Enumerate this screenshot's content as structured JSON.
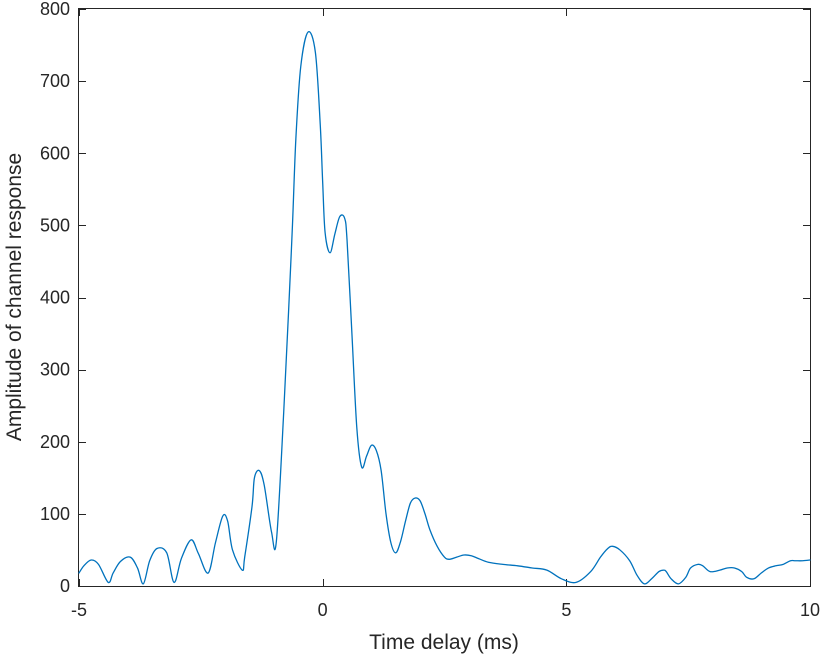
{
  "chart_data": {
    "type": "line",
    "title": "",
    "xlabel": "Time delay (ms)",
    "ylabel": "Amplitude of channel response",
    "xlim": [
      -5,
      10
    ],
    "ylim": [
      0,
      800
    ],
    "xticks": [
      -5,
      0,
      5,
      10
    ],
    "yticks": [
      0,
      100,
      200,
      300,
      400,
      500,
      600,
      700,
      800
    ],
    "xtick_labels": [
      "-5",
      "0",
      "5",
      "10"
    ],
    "ytick_labels": [
      "0",
      "100",
      "200",
      "300",
      "400",
      "500",
      "600",
      "700",
      "800"
    ],
    "grid": false,
    "box": true,
    "series": [
      {
        "color": "#0072BD",
        "x": [
          -5.0,
          -4.9,
          -4.75,
          -4.6,
          -4.4,
          -4.3,
          -4.15,
          -3.95,
          -3.8,
          -3.68,
          -3.55,
          -3.4,
          -3.2,
          -3.05,
          -2.9,
          -2.7,
          -2.55,
          -2.35,
          -2.2,
          -2.05,
          -1.95,
          -1.85,
          -1.65,
          -1.6,
          -1.45,
          -1.4,
          -1.3,
          -1.2,
          -1.05,
          -0.95,
          -0.8,
          -0.7,
          -0.62,
          -0.55,
          -0.45,
          -0.3,
          -0.15,
          -0.05,
          0.0,
          0.05,
          0.15,
          0.25,
          0.35,
          0.45,
          0.5,
          0.6,
          0.7,
          0.8,
          0.9,
          1.0,
          1.1,
          1.2,
          1.3,
          1.4,
          1.5,
          1.6,
          1.7,
          1.8,
          1.9,
          2.0,
          2.1,
          2.2,
          2.35,
          2.5,
          2.6,
          2.75,
          2.9,
          3.05,
          3.2,
          3.4,
          3.7,
          4.0,
          4.3,
          4.6,
          4.9,
          5.2,
          5.5,
          5.7,
          5.85,
          5.95,
          6.1,
          6.3,
          6.45,
          6.6,
          6.75,
          6.9,
          7.0,
          7.05,
          7.15,
          7.3,
          7.45,
          7.55,
          7.7,
          7.8,
          7.95,
          8.15,
          8.3,
          8.45,
          8.6,
          8.7,
          8.85,
          9.0,
          9.15,
          9.3,
          9.45,
          9.6,
          9.7,
          9.85,
          10.0
        ],
        "y": [
          18,
          28,
          36,
          30,
          5,
          18,
          34,
          40,
          25,
          3,
          35,
          52,
          46,
          5,
          38,
          64,
          45,
          18,
          60,
          97,
          90,
          50,
          22,
          40,
          110,
          150,
          160,
          140,
          75,
          62,
          240,
          380,
          500,
          620,
          720,
          768,
          740,
          640,
          560,
          490,
          462,
          488,
          512,
          510,
          480,
          350,
          220,
          165,
          180,
          195,
          188,
          160,
          100,
          60,
          46,
          62,
          90,
          115,
          122,
          118,
          100,
          78,
          55,
          40,
          37,
          40,
          43,
          42,
          38,
          33,
          30,
          28,
          25,
          22,
          10,
          5,
          20,
          40,
          52,
          55,
          50,
          35,
          15,
          3,
          10,
          20,
          22,
          20,
          10,
          3,
          12,
          25,
          30,
          28,
          20,
          22,
          25,
          25,
          20,
          12,
          10,
          18,
          25,
          28,
          30,
          35,
          35,
          35,
          36
        ]
      }
    ]
  }
}
